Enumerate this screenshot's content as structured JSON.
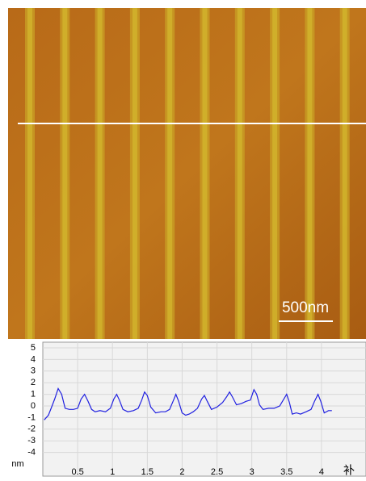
{
  "image": {
    "scale_label": "500nm"
  },
  "chart_data": {
    "type": "line",
    "x_label": "补",
    "y_label": "nm",
    "xlim": [
      0,
      4.5
    ],
    "ylim": [
      -6,
      5.5
    ],
    "xticks": [
      0.5,
      1,
      1.5,
      2,
      2.5,
      3,
      3.5,
      4
    ],
    "yticks": [
      5,
      4,
      3,
      2,
      1,
      0,
      -1,
      -2,
      -3,
      -4
    ],
    "grid": true,
    "x": [
      0.02,
      0.08,
      0.12,
      0.17,
      0.22,
      0.27,
      0.32,
      0.38,
      0.44,
      0.5,
      0.55,
      0.6,
      0.65,
      0.7,
      0.75,
      0.82,
      0.9,
      0.97,
      1.02,
      1.06,
      1.1,
      1.15,
      1.22,
      1.3,
      1.37,
      1.42,
      1.46,
      1.5,
      1.55,
      1.62,
      1.7,
      1.76,
      1.82,
      1.87,
      1.91,
      1.95,
      2.0,
      2.05,
      2.1,
      2.16,
      2.22,
      2.28,
      2.32,
      2.36,
      2.42,
      2.5,
      2.58,
      2.64,
      2.68,
      2.72,
      2.78,
      2.85,
      2.92,
      2.98,
      3.03,
      3.07,
      3.11,
      3.16,
      3.24,
      3.32,
      3.4,
      3.46,
      3.5,
      3.54,
      3.58,
      3.64,
      3.7,
      3.78,
      3.85,
      3.9,
      3.95,
      3.99,
      4.04,
      4.1,
      4.15
    ],
    "series": [
      {
        "color": "#2020e0",
        "values": [
          -1.2,
          -0.8,
          -0.2,
          0.6,
          1.5,
          1.0,
          -0.2,
          -0.3,
          -0.3,
          -0.2,
          0.6,
          1.0,
          0.4,
          -0.3,
          -0.5,
          -0.4,
          -0.5,
          -0.2,
          0.6,
          1.0,
          0.5,
          -0.3,
          -0.5,
          -0.4,
          -0.2,
          0.5,
          1.2,
          0.9,
          -0.1,
          -0.6,
          -0.5,
          -0.5,
          -0.3,
          0.4,
          1.0,
          0.4,
          -0.6,
          -0.8,
          -0.7,
          -0.5,
          -0.2,
          0.6,
          0.9,
          0.4,
          -0.3,
          -0.1,
          0.3,
          0.8,
          1.2,
          0.8,
          0.1,
          0.2,
          0.4,
          0.5,
          1.4,
          1.0,
          0.1,
          -0.3,
          -0.2,
          -0.2,
          0.0,
          0.6,
          1.0,
          0.3,
          -0.7,
          -0.6,
          -0.7,
          -0.5,
          -0.3,
          0.4,
          1.0,
          0.4,
          -0.6,
          -0.4,
          -0.4
        ]
      }
    ]
  }
}
